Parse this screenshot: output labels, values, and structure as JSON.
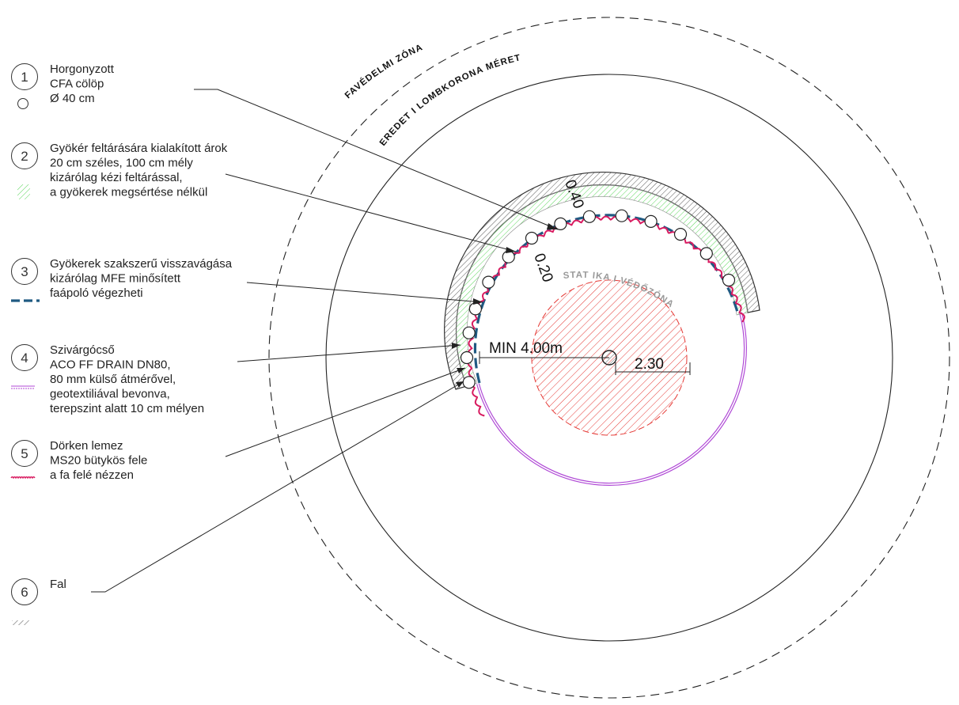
{
  "legend": [
    {
      "number": "1",
      "lines": [
        "Horgonyzott",
        "CFA cölöp",
        "Ø 40 cm"
      ],
      "symbol": "circle-icon"
    },
    {
      "number": "2",
      "lines": [
        "Gyökér feltárására kialakított árok",
        "20 cm széles, 100 cm mély",
        "kizárólag kézi feltárással,",
        "a gyökerek megsértése nélkül"
      ],
      "symbol": "green-hatch-icon"
    },
    {
      "number": "3",
      "lines": [
        "Gyökerek szakszerű visszavágása",
        "kizárólag MFE minősített",
        "faápoló végezheti"
      ],
      "symbol": "blue-dash-icon"
    },
    {
      "number": "4",
      "lines": [
        "Szivárgócső",
        "ACO FF DRAIN DN80,",
        "80 mm külső átmérővel,",
        "geotextiliával bevonva,",
        "terepszint alatt 10 cm mélyen"
      ],
      "symbol": "purple-double-line-icon"
    },
    {
      "number": "5",
      "lines": [
        "Dörken lemez",
        "MS20 bütykös fele",
        "a fa felé nézzen"
      ],
      "symbol": "pink-wave-icon"
    },
    {
      "number": "6",
      "lines": [
        "Fal"
      ],
      "symbol": "grey-hatch-icon"
    }
  ],
  "labels": {
    "protection_zone": "FAVÉDELMI ZÓNA",
    "original_crown": "EREDET I LOMBKORONA MÉRET",
    "static_zone": "STAT IKA I VÉDŐZÓNA"
  },
  "dimensions": {
    "min_distance": "MIN 4.00m",
    "static_radius": "2.30",
    "pile_diameter": "0.40",
    "trench_width": "0.20"
  },
  "colors": {
    "root_line": "#d81b60",
    "cut_line": "#1f5a82",
    "drain_line": "#b04ad6",
    "static_hatch": "#e53935",
    "green_hatch": "#5bd75b",
    "wall_hatch": "#444444"
  }
}
